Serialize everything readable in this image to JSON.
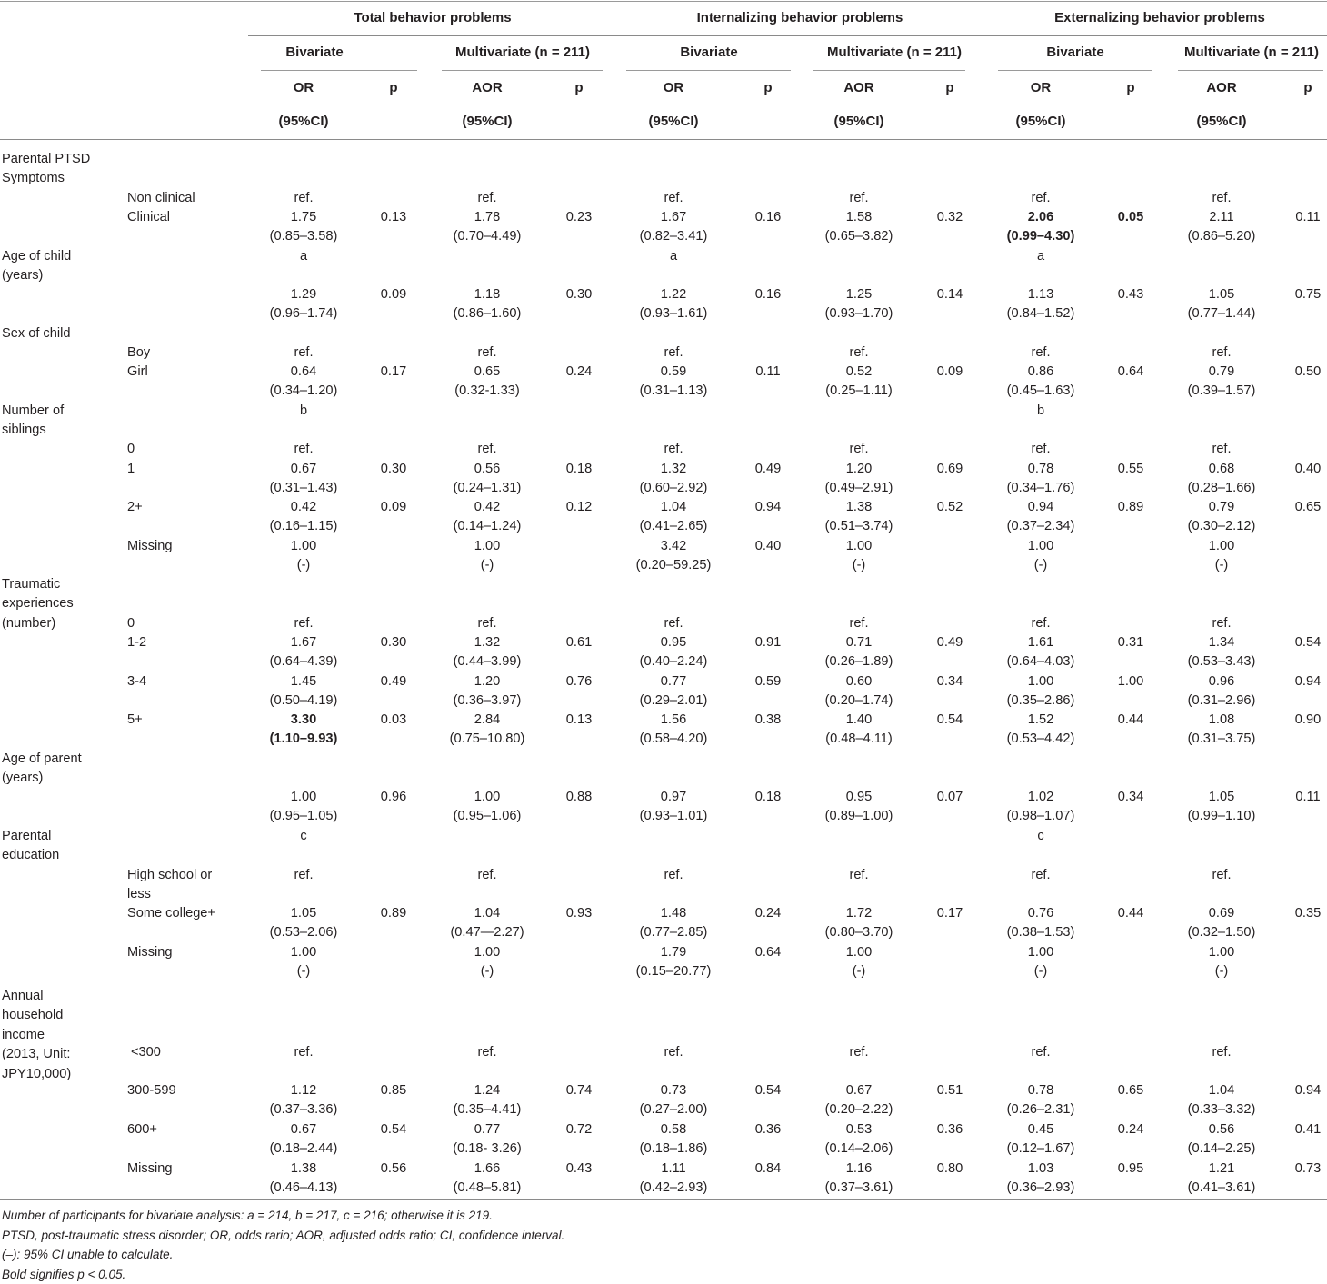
{
  "groups": [
    "Total behavior problems",
    "Internalizing behavior problems",
    "Externalizing behavior problems"
  ],
  "analyses": [
    "Bivariate",
    "Multivariate (n = 211)"
  ],
  "colheads": {
    "or": "OR",
    "aor": "AOR",
    "p": "p",
    "ci": "(95%CI)"
  },
  "rows": [
    {
      "label": [
        "Parental PTSD",
        "Symptoms"
      ],
      "sub": "",
      "cells": []
    },
    {
      "label": [],
      "sub": "Non clinical",
      "cells": [
        [
          "ref."
        ],
        [],
        [
          "ref."
        ],
        [],
        [
          "ref."
        ],
        [],
        [
          "ref."
        ],
        [],
        [
          "ref."
        ],
        [],
        [
          "ref."
        ],
        []
      ]
    },
    {
      "label": [],
      "sub": "Clinical",
      "cells": [
        [
          "1.75",
          "(0.85–3.58)"
        ],
        [
          "0.13"
        ],
        [
          "1.78",
          "(0.70–4.49)"
        ],
        [
          "0.23"
        ],
        [
          "1.67",
          "(0.82–3.41)"
        ],
        [
          "0.16"
        ],
        [
          "1.58",
          "(0.65–3.82)"
        ],
        [
          "0.32"
        ],
        [
          "2.06",
          "(0.99–4.30)"
        ],
        [
          "0.05"
        ],
        [
          "2.11",
          "(0.86–5.20)"
        ],
        [
          "0.11"
        ]
      ]
    },
    {
      "label": [
        "Age of child",
        "(years)"
      ],
      "sub": "",
      "cells": [
        [
          "a"
        ],
        [],
        [],
        [],
        [
          "a"
        ],
        [],
        [],
        [],
        [
          "a"
        ],
        [],
        [],
        []
      ]
    },
    {
      "label": [],
      "sub": "",
      "cells": [
        [
          "1.29",
          "(0.96–1.74)"
        ],
        [
          "0.09"
        ],
        [
          "1.18",
          "(0.86–1.60)"
        ],
        [
          "0.30"
        ],
        [
          "1.22",
          "(0.93–1.61)"
        ],
        [
          "0.16"
        ],
        [
          "1.25",
          "(0.93–1.70)"
        ],
        [
          "0.14"
        ],
        [
          "1.13",
          "(0.84–1.52)"
        ],
        [
          "0.43"
        ],
        [
          "1.05",
          "(0.77–1.44)"
        ],
        [
          "0.75"
        ]
      ]
    },
    {
      "label": [
        "Sex of child"
      ],
      "sub": "",
      "cells": []
    },
    {
      "label": [],
      "sub": "Boy",
      "cells": [
        [
          "ref."
        ],
        [],
        [
          "ref."
        ],
        [],
        [
          "ref."
        ],
        [],
        [
          "ref."
        ],
        [],
        [
          "ref."
        ],
        [],
        [
          "ref."
        ],
        []
      ]
    },
    {
      "label": [],
      "sub": "Girl",
      "cells": [
        [
          "0.64",
          "(0.34–1.20)"
        ],
        [
          "0.17"
        ],
        [
          "0.65",
          "(0.32-1.33)"
        ],
        [
          "0.24"
        ],
        [
          "0.59",
          "(0.31–1.13)"
        ],
        [
          "0.11"
        ],
        [
          "0.52",
          "(0.25–1.11)"
        ],
        [
          "0.09"
        ],
        [
          "0.86",
          "(0.45–1.63)"
        ],
        [
          "0.64"
        ],
        [
          "0.79",
          "(0.39–1.57)"
        ],
        [
          "0.50"
        ]
      ]
    },
    {
      "label": [
        "Number of",
        "siblings"
      ],
      "sub": "",
      "cells": [
        [
          "b"
        ],
        [],
        [],
        [],
        [],
        [],
        [],
        [],
        [
          "b"
        ],
        [],
        [],
        []
      ]
    },
    {
      "label": [],
      "sub": "0",
      "cells": [
        [
          "ref."
        ],
        [],
        [
          "ref."
        ],
        [],
        [
          "ref."
        ],
        [],
        [
          "ref."
        ],
        [],
        [
          "ref."
        ],
        [],
        [
          "ref."
        ],
        []
      ]
    },
    {
      "label": [],
      "sub": "1",
      "cells": [
        [
          "0.67",
          "(0.31–1.43)"
        ],
        [
          "0.30"
        ],
        [
          "0.56",
          "(0.24–1.31)"
        ],
        [
          "0.18"
        ],
        [
          "1.32",
          "(0.60–2.92)"
        ],
        [
          "0.49"
        ],
        [
          "1.20",
          "(0.49–2.91)"
        ],
        [
          "0.69"
        ],
        [
          "0.78",
          "(0.34–1.76)"
        ],
        [
          "0.55"
        ],
        [
          "0.68",
          "(0.28–1.66)"
        ],
        [
          "0.40"
        ]
      ]
    },
    {
      "label": [],
      "sub": "2+",
      "cells": [
        [
          "0.42",
          "(0.16–1.15)"
        ],
        [
          "0.09"
        ],
        [
          "0.42",
          "(0.14–1.24)"
        ],
        [
          "0.12"
        ],
        [
          "1.04",
          "(0.41–2.65)"
        ],
        [
          "0.94"
        ],
        [
          "1.38",
          "(0.51–3.74)"
        ],
        [
          "0.52"
        ],
        [
          "0.94",
          "(0.37–2.34)"
        ],
        [
          "0.89"
        ],
        [
          "0.79",
          "(0.30–2.12)"
        ],
        [
          "0.65"
        ]
      ]
    },
    {
      "label": [],
      "sub": "Missing",
      "cells": [
        [
          "1.00",
          "(-)"
        ],
        [],
        [
          "1.00",
          "(-)"
        ],
        [],
        [
          "3.42",
          "(0.20–59.25)"
        ],
        [
          "0.40"
        ],
        [
          "1.00",
          "(-)"
        ],
        [],
        [
          "1.00",
          "(-)"
        ],
        [],
        [
          "1.00",
          "(-)"
        ],
        []
      ]
    },
    {
      "label": [
        "Traumatic",
        "experiences",
        "(number)"
      ],
      "sub": "",
      "cells": []
    },
    {
      "label": [],
      "sub": "0",
      "cells": [
        [
          "ref."
        ],
        [],
        [
          "ref."
        ],
        [],
        [
          "ref."
        ],
        [],
        [
          "ref."
        ],
        [],
        [
          "ref."
        ],
        [],
        [
          "ref."
        ],
        []
      ]
    },
    {
      "label": [],
      "sub": "1-2",
      "cells": [
        [
          "1.67",
          "(0.64–4.39)"
        ],
        [
          "0.30"
        ],
        [
          "1.32",
          "(0.44–3.99)"
        ],
        [
          "0.61"
        ],
        [
          "0.95",
          "(0.40–2.24)"
        ],
        [
          "0.91"
        ],
        [
          "0.71",
          "(0.26–1.89)"
        ],
        [
          "0.49"
        ],
        [
          "1.61",
          "(0.64–4.03)"
        ],
        [
          "0.31"
        ],
        [
          "1.34",
          "(0.53–3.43)"
        ],
        [
          "0.54"
        ]
      ]
    },
    {
      "label": [],
      "sub": "3-4",
      "cells": [
        [
          "1.45",
          "(0.50–4.19)"
        ],
        [
          "0.49"
        ],
        [
          "1.20",
          "(0.36–3.97)"
        ],
        [
          "0.76"
        ],
        [
          "0.77",
          "(0.29–2.01)"
        ],
        [
          "0.59"
        ],
        [
          "0.60",
          "(0.20–1.74)"
        ],
        [
          "0.34"
        ],
        [
          "1.00",
          "(0.35–2.86)"
        ],
        [
          "1.00"
        ],
        [
          "0.96",
          "(0.31–2.96)"
        ],
        [
          "0.94"
        ]
      ]
    },
    {
      "label": [],
      "sub": "5+",
      "cells": [
        [
          "3.30",
          "(1.10–9.93)"
        ],
        [
          "0.03"
        ],
        [
          "2.84",
          "(0.75–10.80)"
        ],
        [
          "0.13"
        ],
        [
          "1.56",
          "(0.58–4.20)"
        ],
        [
          "0.38"
        ],
        [
          "1.40",
          "(0.48–4.11)"
        ],
        [
          "0.54"
        ],
        [
          "1.52",
          "(0.53–4.42)"
        ],
        [
          "0.44"
        ],
        [
          "1.08",
          "(0.31–3.75)"
        ],
        [
          "0.90"
        ]
      ]
    },
    {
      "label": [
        "Age of parent",
        "(years)"
      ],
      "sub": "",
      "cells": []
    },
    {
      "label": [],
      "sub": "",
      "cells": [
        [
          "1.00",
          "(0.95–1.05)"
        ],
        [
          "0.96"
        ],
        [
          "1.00",
          "(0.95–1.06)"
        ],
        [
          "0.88"
        ],
        [
          "0.97",
          "(0.93–1.01)"
        ],
        [
          "0.18"
        ],
        [
          "0.95",
          "(0.89–1.00)"
        ],
        [
          "0.07"
        ],
        [
          "1.02",
          "(0.98–1.07)"
        ],
        [
          "0.34"
        ],
        [
          "1.05",
          "(0.99–1.10)"
        ],
        [
          "0.11"
        ]
      ]
    },
    {
      "label": [
        "Parental",
        "education"
      ],
      "sub": "",
      "cells": [
        [
          "c"
        ],
        [],
        [],
        [],
        [],
        [],
        [],
        [],
        [
          "c"
        ],
        [],
        [],
        []
      ]
    },
    {
      "label": [],
      "sub": "High school or|less",
      "cells": [
        [
          "ref."
        ],
        [],
        [
          "ref."
        ],
        [],
        [
          "ref."
        ],
        [],
        [
          "ref."
        ],
        [],
        [
          "ref."
        ],
        [],
        [
          "ref."
        ],
        []
      ]
    },
    {
      "label": [],
      "sub": "Some college+",
      "cells": [
        [
          "1.05",
          "(0.53–2.06)"
        ],
        [
          "0.89"
        ],
        [
          "1.04",
          "(0.47—2.27)"
        ],
        [
          "0.93"
        ],
        [
          "1.48",
          "(0.77–2.85)"
        ],
        [
          "0.24"
        ],
        [
          "1.72",
          "(0.80–3.70)"
        ],
        [
          "0.17"
        ],
        [
          "0.76",
          "(0.38–1.53)"
        ],
        [
          "0.44"
        ],
        [
          "0.69",
          "(0.32–1.50)"
        ],
        [
          "0.35"
        ]
      ]
    },
    {
      "label": [],
      "sub": "Missing",
      "cells": [
        [
          "1.00",
          "(-)"
        ],
        [],
        [
          "1.00",
          "(-)"
        ],
        [],
        [
          "1.79",
          "(0.15–20.77)"
        ],
        [
          "0.64"
        ],
        [
          "1.00",
          "(-)"
        ],
        [],
        [
          "1.00",
          "(-)"
        ],
        [],
        [
          "1.00",
          "(-)"
        ],
        []
      ]
    },
    {
      "label": [
        "Annual",
        "household",
        "income",
        "(2013, Unit:",
        "JPY10,000)"
      ],
      "sub": "",
      "cells": []
    },
    {
      "label": [],
      "sub": "<300",
      "cells": [
        [
          "ref."
        ],
        [],
        [
          "ref."
        ],
        [],
        [
          "ref."
        ],
        [],
        [
          "ref."
        ],
        [],
        [
          "ref."
        ],
        [],
        [
          "ref."
        ],
        []
      ]
    },
    {
      "label": [],
      "sub": "300-599",
      "cells": [
        [
          "1.12",
          "(0.37–3.36)"
        ],
        [
          "0.85"
        ],
        [
          "1.24",
          "(0.35–4.41)"
        ],
        [
          "0.74"
        ],
        [
          "0.73",
          "(0.27–2.00)"
        ],
        [
          "0.54"
        ],
        [
          "0.67",
          "(0.20–2.22)"
        ],
        [
          "0.51"
        ],
        [
          "0.78",
          "(0.26–2.31)"
        ],
        [
          "0.65"
        ],
        [
          "1.04",
          "(0.33–3.32)"
        ],
        [
          "0.94"
        ]
      ]
    },
    {
      "label": [],
      "sub": "600+",
      "cells": [
        [
          "0.67",
          "(0.18–2.44)"
        ],
        [
          "0.54"
        ],
        [
          "0.77",
          "(0.18- 3.26)"
        ],
        [
          "0.72"
        ],
        [
          "0.58",
          "(0.18–1.86)"
        ],
        [
          "0.36"
        ],
        [
          "0.53",
          "(0.14–2.06)"
        ],
        [
          "0.36"
        ],
        [
          "0.45",
          "(0.12–1.67)"
        ],
        [
          "0.24"
        ],
        [
          "0.56",
          "(0.14–2.25)"
        ],
        [
          "0.41"
        ]
      ]
    },
    {
      "label": [],
      "sub": "Missing",
      "cells": [
        [
          "1.38",
          "(0.46–4.13)"
        ],
        [
          "0.56"
        ],
        [
          "1.66",
          "(0.48–5.81)"
        ],
        [
          "0.43"
        ],
        [
          "1.11",
          "(0.42–2.93)"
        ],
        [
          "0.84"
        ],
        [
          "1.16",
          "(0.37–3.61)"
        ],
        [
          "0.80"
        ],
        [
          "1.03",
          "(0.36–2.93)"
        ],
        [
          "0.95"
        ],
        [
          "1.21",
          "(0.41–3.61)"
        ],
        [
          "0.73"
        ]
      ]
    }
  ],
  "bold": [
    "2:8",
    "2:9",
    "17:0"
  ],
  "footnotes": [
    "Number of participants for bivariate analysis: a = 214, b = 217, c = 216; otherwise it is 219.",
    "PTSD, post-traumatic stress disorder; OR, odds rario; AOR, adjusted odds ratio; CI, confidence interval.",
    "(–): 95% CI unable to calculate.",
    "Bold signifies p < 0.05."
  ]
}
